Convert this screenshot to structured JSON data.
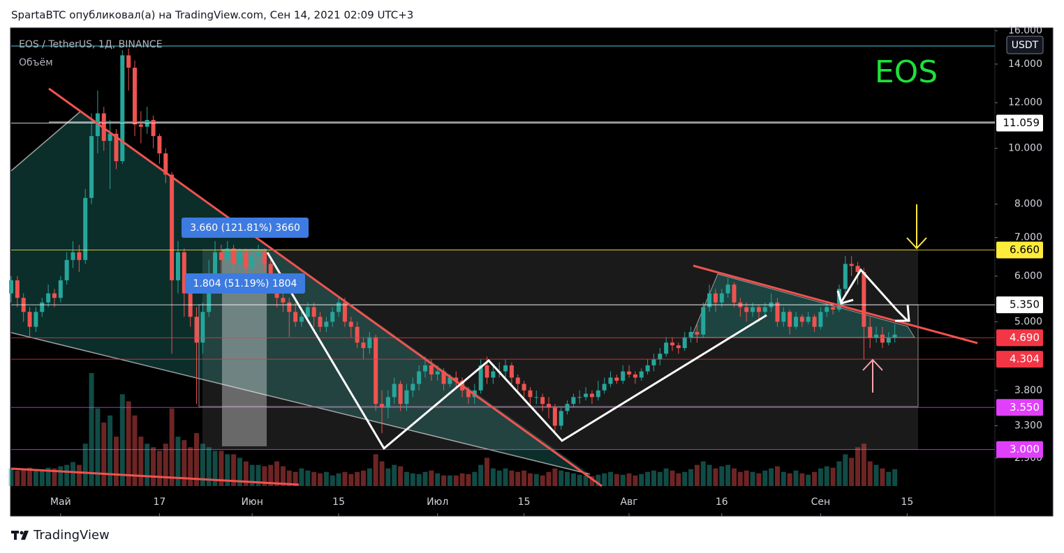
{
  "header": {
    "attribution": "SpartaBTC опубликовал(а) на TradingView.com, Сен 14, 2021 02:09 UTC+3",
    "brand": "TradingView"
  },
  "chart_data": {
    "type": "candlestick",
    "symbol_title": "EOS / TetherUS, 1Д, BINANCE",
    "volume_label": "Объём",
    "annotation": "EOS",
    "currency": "USDT",
    "measurements": [
      "3.660 (121.81%) 3660",
      "1.804 (51.19%) 1804"
    ],
    "up_color": "#26a69a",
    "down_color": "#ef5350",
    "log_scale": true,
    "grid": false,
    "xlim": [
      -8,
      151.2
    ],
    "xticks": [
      {
        "value": 0,
        "label": "Май"
      },
      {
        "value": 16,
        "label": "17"
      },
      {
        "value": 31,
        "label": "Июн"
      },
      {
        "value": 45,
        "label": "15"
      },
      {
        "value": 61,
        "label": "Июл"
      },
      {
        "value": 75,
        "label": "15"
      },
      {
        "value": 92,
        "label": "Авг"
      },
      {
        "value": 107,
        "label": "16"
      },
      {
        "value": 123,
        "label": "Сен"
      },
      {
        "value": 137,
        "label": "15"
      }
    ],
    "ylim": [
      2.3,
      16.18
    ],
    "yticks": [
      {
        "value": 16,
        "label": "16.000"
      },
      {
        "value": 14,
        "label": "14.000"
      },
      {
        "value": 12,
        "label": "12.000"
      },
      {
        "value": 10,
        "label": "10.000"
      },
      {
        "value": 8,
        "label": "8.000"
      },
      {
        "value": 7,
        "label": "7.000"
      },
      {
        "value": 6,
        "label": "6.000"
      },
      {
        "value": 5,
        "label": "5.000"
      },
      {
        "value": 3.8,
        "label": "3.800"
      },
      {
        "value": 3.3,
        "label": "3.300"
      },
      {
        "value": 2.9,
        "label": "2.900"
      }
    ],
    "price_levels": [
      {
        "value": 11.059,
        "label": "11.059",
        "color": "#ffffff"
      },
      {
        "value": 6.66,
        "label": "6.660",
        "color": "#ffeb3b"
      },
      {
        "value": 5.35,
        "label": "5.350",
        "color": "#ffffff"
      },
      {
        "value": 4.69,
        "label": "4.690",
        "color": "#f23645"
      },
      {
        "value": 4.304,
        "label": "4.304",
        "color": "#f23645"
      },
      {
        "value": 3.55,
        "label": "3.550",
        "color": "#e040fb"
      },
      {
        "value": 3.0,
        "label": "3.000",
        "color": "#e040fb"
      }
    ],
    "x": [
      -8,
      -7,
      -6,
      -5,
      -4,
      -3,
      -2,
      -1,
      0,
      1,
      2,
      3,
      4,
      5,
      6,
      7,
      8,
      9,
      10,
      11,
      12,
      13,
      14,
      15,
      16,
      17,
      18,
      19,
      20,
      21,
      22,
      23,
      24,
      25,
      26,
      27,
      28,
      29,
      30,
      31,
      32,
      33,
      34,
      35,
      36,
      37,
      38,
      39,
      40,
      41,
      42,
      43,
      44,
      45,
      46,
      47,
      48,
      49,
      50,
      51,
      52,
      53,
      54,
      55,
      56,
      57,
      58,
      59,
      60,
      61,
      62,
      63,
      64,
      65,
      66,
      67,
      68,
      69,
      70,
      71,
      72,
      73,
      74,
      75,
      76,
      77,
      78,
      79,
      80,
      81,
      82,
      83,
      84,
      85,
      86,
      87,
      88,
      89,
      90,
      91,
      92,
      93,
      94,
      95,
      96,
      97,
      98,
      99,
      100,
      101,
      102,
      103,
      104,
      105,
      106,
      107,
      108,
      109,
      110,
      111,
      112,
      113,
      114,
      115,
      116,
      117,
      118,
      119,
      120,
      121,
      122,
      123,
      124,
      125,
      126,
      127,
      128,
      129,
      130,
      131,
      132,
      133,
      134,
      135
    ],
    "candles": [
      [
        5.6,
        6.0,
        5.4,
        5.9
      ],
      [
        5.9,
        6.0,
        5.3,
        5.5
      ],
      [
        5.5,
        5.6,
        5.0,
        5.2
      ],
      [
        5.2,
        5.3,
        4.7,
        4.9
      ],
      [
        4.9,
        5.3,
        4.8,
        5.2
      ],
      [
        5.2,
        5.5,
        5.1,
        5.4
      ],
      [
        5.4,
        5.8,
        5.3,
        5.6
      ],
      [
        5.6,
        5.7,
        5.3,
        5.5
      ],
      [
        5.5,
        6.0,
        5.4,
        5.9
      ],
      [
        5.9,
        6.6,
        5.8,
        6.4
      ],
      [
        6.4,
        6.9,
        6.2,
        6.6
      ],
      [
        6.6,
        6.8,
        6.1,
        6.4
      ],
      [
        6.4,
        8.5,
        6.3,
        8.2
      ],
      [
        8.2,
        11.5,
        8.0,
        10.5
      ],
      [
        10.5,
        12.6,
        9.8,
        11.5
      ],
      [
        11.5,
        11.8,
        9.9,
        10.3
      ],
      [
        10.3,
        11.2,
        8.5,
        10.6
      ],
      [
        10.6,
        10.8,
        9.2,
        9.5
      ],
      [
        9.5,
        14.8,
        9.4,
        14.5
      ],
      [
        14.5,
        14.9,
        12.6,
        13.8
      ],
      [
        13.8,
        14.2,
        10.5,
        11.0
      ],
      [
        11.0,
        11.6,
        10.2,
        10.9
      ],
      [
        10.9,
        11.8,
        10.6,
        11.2
      ],
      [
        11.2,
        11.4,
        10.0,
        10.5
      ],
      [
        10.5,
        10.6,
        9.4,
        9.8
      ],
      [
        9.8,
        10.0,
        8.7,
        9.0
      ],
      [
        9.0,
        9.1,
        4.4,
        5.9
      ],
      [
        5.9,
        6.9,
        5.6,
        6.6
      ],
      [
        6.6,
        6.7,
        5.1,
        5.6
      ],
      [
        5.6,
        5.8,
        4.9,
        5.1
      ],
      [
        5.1,
        5.3,
        3.6,
        4.6
      ],
      [
        4.6,
        5.4,
        4.4,
        5.2
      ],
      [
        5.2,
        6.4,
        5.1,
        6.0
      ],
      [
        6.0,
        6.9,
        5.8,
        6.6
      ],
      [
        6.6,
        6.8,
        6.0,
        6.4
      ],
      [
        6.4,
        6.9,
        6.2,
        6.7
      ],
      [
        6.7,
        6.8,
        6.1,
        6.3
      ],
      [
        6.3,
        6.7,
        6.1,
        6.6
      ],
      [
        6.6,
        6.7,
        6.0,
        6.2
      ],
      [
        6.2,
        6.7,
        6.1,
        6.5
      ],
      [
        6.5,
        6.8,
        6.3,
        6.6
      ],
      [
        6.6,
        6.7,
        6.1,
        6.3
      ],
      [
        6.3,
        6.4,
        5.7,
        5.9
      ],
      [
        5.9,
        6.0,
        5.3,
        5.5
      ],
      [
        5.5,
        5.7,
        5.2,
        5.4
      ],
      [
        5.4,
        5.5,
        4.7,
        5.2
      ],
      [
        5.2,
        5.4,
        4.9,
        5.0
      ],
      [
        5.0,
        5.3,
        4.9,
        5.1
      ],
      [
        5.1,
        5.4,
        5.0,
        5.3
      ],
      [
        5.3,
        5.4,
        4.9,
        5.1
      ],
      [
        5.1,
        5.2,
        4.8,
        4.9
      ],
      [
        4.9,
        5.1,
        4.8,
        5.0
      ],
      [
        5.0,
        5.3,
        4.9,
        5.2
      ],
      [
        5.2,
        5.5,
        5.1,
        5.4
      ],
      [
        5.4,
        5.5,
        4.9,
        5.0
      ],
      [
        5.0,
        5.1,
        4.7,
        4.9
      ],
      [
        4.9,
        5.0,
        4.5,
        4.6
      ],
      [
        4.6,
        4.7,
        4.3,
        4.5
      ],
      [
        4.5,
        4.8,
        4.4,
        4.7
      ],
      [
        4.7,
        4.75,
        3.5,
        3.6
      ],
      [
        3.6,
        3.8,
        3.2,
        3.55
      ],
      [
        3.55,
        3.8,
        3.4,
        3.7
      ],
      [
        3.7,
        4.0,
        3.6,
        3.9
      ],
      [
        3.9,
        3.95,
        3.5,
        3.6
      ],
      [
        3.6,
        3.9,
        3.5,
        3.8
      ],
      [
        3.8,
        4.0,
        3.7,
        3.9
      ],
      [
        3.9,
        4.2,
        3.8,
        4.1
      ],
      [
        4.1,
        4.35,
        4.0,
        4.2
      ],
      [
        4.2,
        4.3,
        3.95,
        4.05
      ],
      [
        4.05,
        4.2,
        3.95,
        4.1
      ],
      [
        4.1,
        4.15,
        3.8,
        3.9
      ],
      [
        3.9,
        4.05,
        3.85,
        4.0
      ],
      [
        4.0,
        4.1,
        3.85,
        3.95
      ],
      [
        3.95,
        4.0,
        3.7,
        3.8
      ],
      [
        3.8,
        3.85,
        3.6,
        3.7
      ],
      [
        3.7,
        3.9,
        3.6,
        3.8
      ],
      [
        3.8,
        4.3,
        3.75,
        4.2
      ],
      [
        4.2,
        4.35,
        3.9,
        4.0
      ],
      [
        4.0,
        4.2,
        3.9,
        4.1
      ],
      [
        4.1,
        4.25,
        4.0,
        4.1
      ],
      [
        4.1,
        4.3,
        4.0,
        4.2
      ],
      [
        4.2,
        4.25,
        3.9,
        4.0
      ],
      [
        4.0,
        4.05,
        3.8,
        3.9
      ],
      [
        3.9,
        3.95,
        3.7,
        3.8
      ],
      [
        3.8,
        3.85,
        3.6,
        3.7
      ],
      [
        3.7,
        3.8,
        3.6,
        3.7
      ],
      [
        3.7,
        3.75,
        3.5,
        3.6
      ],
      [
        3.6,
        3.7,
        3.4,
        3.55
      ],
      [
        3.55,
        3.6,
        3.2,
        3.3
      ],
      [
        3.3,
        3.55,
        3.25,
        3.5
      ],
      [
        3.5,
        3.65,
        3.45,
        3.6
      ],
      [
        3.6,
        3.75,
        3.55,
        3.7
      ],
      [
        3.7,
        3.8,
        3.6,
        3.7
      ],
      [
        3.7,
        3.85,
        3.65,
        3.75
      ],
      [
        3.75,
        3.8,
        3.6,
        3.7
      ],
      [
        3.7,
        3.95,
        3.65,
        3.8
      ],
      [
        3.8,
        4.0,
        3.75,
        3.9
      ],
      [
        3.9,
        4.1,
        3.85,
        4.0
      ],
      [
        4.0,
        4.05,
        3.9,
        3.95
      ],
      [
        3.95,
        4.2,
        3.9,
        4.1
      ],
      [
        4.1,
        4.2,
        4.0,
        4.05
      ],
      [
        4.05,
        4.1,
        3.9,
        4.0
      ],
      [
        4.0,
        4.15,
        3.95,
        4.1
      ],
      [
        4.1,
        4.3,
        4.05,
        4.2
      ],
      [
        4.2,
        4.4,
        4.1,
        4.3
      ],
      [
        4.3,
        4.5,
        4.2,
        4.4
      ],
      [
        4.4,
        4.7,
        4.35,
        4.6
      ],
      [
        4.6,
        4.7,
        4.45,
        4.55
      ],
      [
        4.55,
        4.6,
        4.4,
        4.5
      ],
      [
        4.5,
        4.8,
        4.45,
        4.7
      ],
      [
        4.7,
        4.9,
        4.6,
        4.8
      ],
      [
        4.8,
        4.95,
        4.6,
        4.75
      ],
      [
        4.75,
        5.4,
        4.7,
        5.3
      ],
      [
        5.3,
        5.8,
        5.2,
        5.6
      ],
      [
        5.6,
        5.7,
        5.2,
        5.4
      ],
      [
        5.4,
        5.7,
        5.3,
        5.6
      ],
      [
        5.6,
        5.95,
        5.5,
        5.8
      ],
      [
        5.8,
        5.85,
        5.3,
        5.4
      ],
      [
        5.4,
        5.5,
        5.1,
        5.3
      ],
      [
        5.3,
        5.4,
        5.0,
        5.2
      ],
      [
        5.2,
        5.4,
        5.1,
        5.3
      ],
      [
        5.3,
        5.35,
        5.0,
        5.2
      ],
      [
        5.2,
        5.4,
        5.1,
        5.3
      ],
      [
        5.3,
        5.6,
        5.2,
        5.4
      ],
      [
        5.4,
        5.5,
        4.9,
        5.0
      ],
      [
        5.0,
        5.3,
        4.9,
        5.2
      ],
      [
        5.2,
        5.25,
        4.75,
        4.9
      ],
      [
        4.9,
        5.2,
        4.85,
        5.1
      ],
      [
        5.1,
        5.15,
        4.9,
        5.0
      ],
      [
        5.0,
        5.2,
        4.95,
        5.1
      ],
      [
        5.1,
        5.15,
        4.8,
        4.9
      ],
      [
        4.9,
        5.3,
        4.85,
        5.2
      ],
      [
        5.2,
        5.4,
        5.1,
        5.3
      ],
      [
        5.3,
        5.4,
        5.15,
        5.25
      ],
      [
        5.25,
        5.8,
        5.2,
        5.7
      ],
      [
        5.7,
        6.5,
        5.6,
        6.3
      ],
      [
        6.3,
        6.5,
        6.0,
        6.25
      ],
      [
        6.25,
        6.35,
        5.8,
        6.1
      ],
      [
        6.1,
        6.2,
        4.3,
        4.9
      ],
      [
        4.9,
        5.1,
        4.5,
        4.7
      ],
      [
        4.7,
        4.9,
        4.6,
        4.75
      ],
      [
        4.75,
        4.9,
        4.5,
        4.6
      ],
      [
        4.6,
        4.8,
        4.55,
        4.7
      ],
      [
        4.7,
        4.95,
        4.6,
        4.75
      ]
    ],
    "volume": [
      25,
      22,
      24,
      26,
      24,
      22,
      26,
      25,
      28,
      30,
      34,
      30,
      60,
      160,
      110,
      90,
      100,
      70,
      130,
      120,
      100,
      70,
      60,
      55,
      50,
      60,
      110,
      70,
      65,
      55,
      75,
      60,
      55,
      50,
      50,
      45,
      45,
      40,
      35,
      30,
      30,
      28,
      30,
      35,
      28,
      22,
      20,
      25,
      22,
      20,
      18,
      20,
      15,
      18,
      20,
      17,
      20,
      22,
      25,
      45,
      35,
      25,
      30,
      28,
      20,
      18,
      17,
      20,
      22,
      18,
      15,
      15,
      15,
      18,
      17,
      20,
      30,
      40,
      25,
      22,
      25,
      22,
      20,
      22,
      18,
      17,
      15,
      20,
      25,
      22,
      20,
      18,
      16,
      15,
      14,
      16,
      18,
      20,
      17,
      16,
      18,
      15,
      17,
      20,
      22,
      20,
      25,
      22,
      18,
      20,
      24,
      30,
      35,
      30,
      25,
      28,
      30,
      25,
      20,
      22,
      20,
      18,
      22,
      25,
      28,
      20,
      18,
      22,
      18,
      16,
      20,
      25,
      28,
      26,
      35,
      45,
      40,
      55,
      60,
      35,
      30,
      25,
      20,
      24
    ]
  }
}
